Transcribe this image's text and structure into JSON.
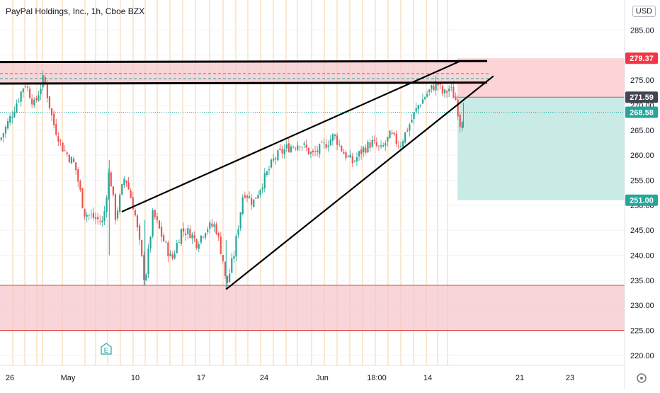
{
  "header": {
    "symbol_title": "PayPal Holdings, Inc., 1h, Cboe BZX",
    "currency": "USD"
  },
  "colors": {
    "up": "#26a69a",
    "down": "#ef5350",
    "zone_red": "#f4c7cb",
    "zone_red_line": "#e03a3a",
    "short_stop_zone": "#fcd4d6",
    "short_target_zone": "#c9ebe6",
    "trendline": "#000000",
    "grid_orange": "#fbe3c5",
    "axis_text": "#131722"
  },
  "chart_data": {
    "type": "candlestick",
    "title": "PayPal Holdings, Inc., 1h, Cboe BZX",
    "currency": "USD",
    "ylim": [
      218,
      291
    ],
    "y_ticks": [
      285,
      280,
      275,
      270,
      265,
      260,
      255,
      250,
      245,
      240,
      235,
      230,
      225,
      220
    ],
    "y_tick_labels": [
      "285.00",
      "280.00",
      "275.00",
      "270.00",
      "265.00",
      "260.00",
      "255.00",
      "250.00",
      "245.00",
      "240.00",
      "235.00",
      "230.00",
      "225.00",
      "220.00"
    ],
    "x_tick_labels": [
      "26",
      "May",
      "10",
      "17",
      "24",
      "Jun",
      "18:00",
      "14",
      "21",
      "23"
    ],
    "price_labels": [
      {
        "value": 279.37,
        "text": "279.37",
        "kind": "stop"
      },
      {
        "value": 271.59,
        "text": "271.59",
        "kind": "entry"
      },
      {
        "value": 268.58,
        "text": "268.58",
        "kind": "last"
      },
      {
        "value": 251.0,
        "text": "251.00",
        "kind": "target"
      }
    ],
    "zones": [
      {
        "name": "resistance",
        "low": 274.2,
        "high": 278.8
      },
      {
        "name": "support",
        "low": 225.0,
        "high": 234.0
      }
    ],
    "dashed_levels": [
      276.3,
      275.3
    ],
    "candle_path": [
      [
        0,
        263.0
      ],
      [
        0.02,
        268.5
      ],
      [
        0.04,
        274.5
      ],
      [
        0.055,
        270.0
      ],
      [
        0.07,
        275.5
      ],
      [
        0.085,
        266.5
      ],
      [
        0.1,
        261.5
      ],
      [
        0.12,
        258.0
      ],
      [
        0.135,
        248.5
      ],
      [
        0.15,
        247.5
      ],
      [
        0.165,
        246.5
      ],
      [
        0.175,
        257.0
      ],
      [
        0.185,
        247.5
      ],
      [
        0.2,
        256.0
      ],
      [
        0.215,
        249.0
      ],
      [
        0.225,
        241.0
      ],
      [
        0.232,
        234.5
      ],
      [
        0.245,
        248.5
      ],
      [
        0.26,
        243.5
      ],
      [
        0.275,
        239.0
      ],
      [
        0.29,
        245.0
      ],
      [
        0.305,
        244.5
      ],
      [
        0.315,
        242.5
      ],
      [
        0.33,
        245.5
      ],
      [
        0.345,
        246.0
      ],
      [
        0.358,
        238.5
      ],
      [
        0.362,
        233.5
      ],
      [
        0.375,
        240.5
      ],
      [
        0.39,
        253.0
      ],
      [
        0.405,
        250.5
      ],
      [
        0.42,
        254.5
      ],
      [
        0.44,
        259.5
      ],
      [
        0.46,
        261.5
      ],
      [
        0.48,
        262.5
      ],
      [
        0.5,
        260.0
      ],
      [
        0.52,
        262.0
      ],
      [
        0.535,
        264.0
      ],
      [
        0.55,
        260.5
      ],
      [
        0.565,
        258.5
      ],
      [
        0.58,
        261.0
      ],
      [
        0.595,
        262.5
      ],
      [
        0.61,
        261.0
      ],
      [
        0.625,
        264.0
      ],
      [
        0.64,
        262.0
      ],
      [
        0.655,
        266.0
      ],
      [
        0.67,
        270.0
      ],
      [
        0.685,
        272.5
      ],
      [
        0.7,
        274.5
      ],
      [
        0.71,
        272.0
      ],
      [
        0.72,
        273.5
      ],
      [
        0.73,
        271.0
      ],
      [
        0.737,
        266.0
      ],
      [
        0.742,
        268.58
      ]
    ],
    "trendlines": [
      {
        "name": "upper-wedge",
        "from": [
          0.195,
          248.7
        ],
        "to": [
          0.735,
          278.7
        ]
      },
      {
        "name": "lower-wedge",
        "from": [
          0.362,
          233.2
        ],
        "to": [
          0.79,
          275.8
        ]
      },
      {
        "name": "resistance-top",
        "from": [
          0.0,
          278.6
        ],
        "to": [
          0.78,
          278.8
        ]
      },
      {
        "name": "resistance-bottom",
        "from": [
          0.0,
          274.3
        ],
        "to": [
          0.78,
          274.5
        ]
      }
    ],
    "position": {
      "type": "short",
      "entry": 271.59,
      "stop": 279.37,
      "target": 251.0
    },
    "marker": {
      "text": "E",
      "position": "near May"
    }
  }
}
